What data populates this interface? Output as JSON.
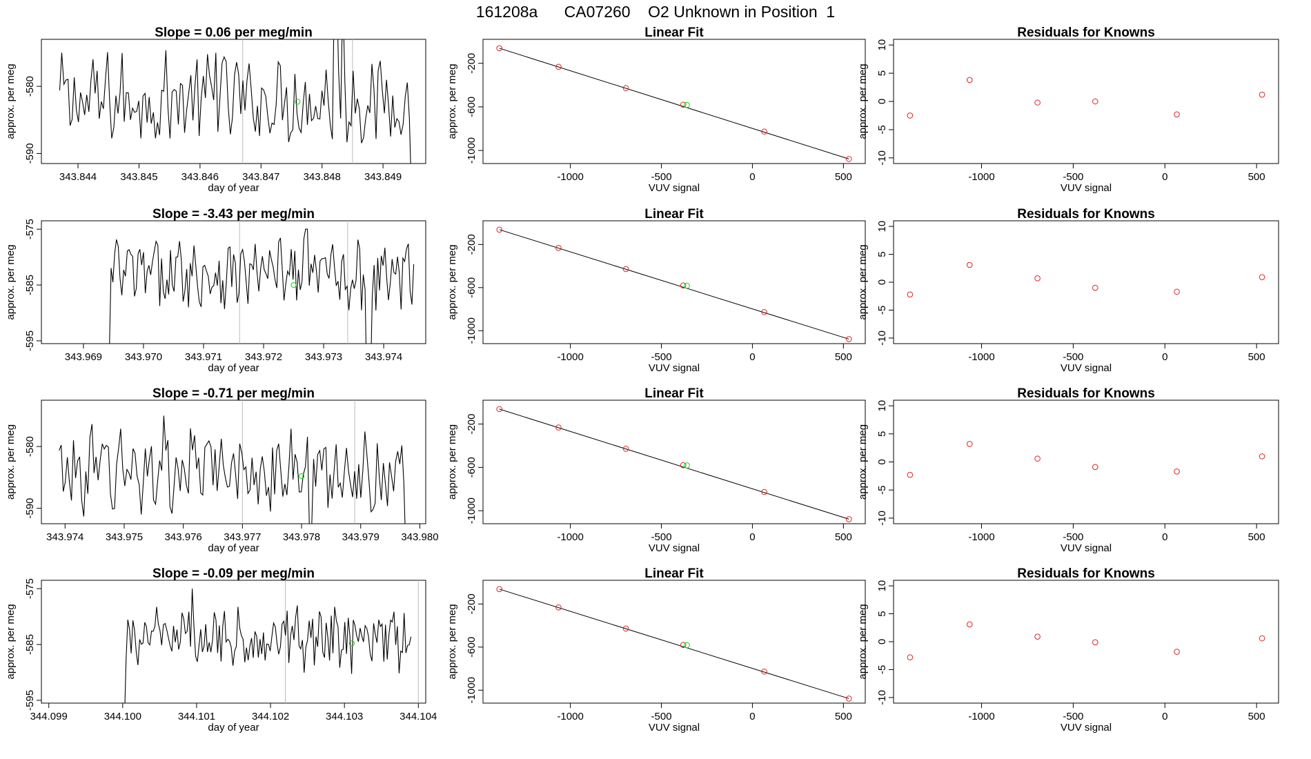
{
  "figure": {
    "title": "161208a      CA07260    O2 Unknown in Position  1"
  },
  "colors": {
    "trace": "#000000",
    "unknown": "#00dd00",
    "known": "#dd2222",
    "marker_line": "#bbbbbb",
    "axis": "#000000"
  },
  "labels": {
    "xlabel_time": "day of year",
    "ylabel": "approx. per meg",
    "xlabel_fit": "VUV signal",
    "fit_title": "Linear Fit",
    "residual_title": "Residuals for Knowns"
  },
  "chart_data": [
    {
      "type": "line",
      "panel": "timeseries",
      "row": 1,
      "title": "Slope =  0.06  per meg/min",
      "xlabel": "day of year",
      "ylabel": "approx. per meg",
      "xlim": [
        343.8434,
        343.8497
      ],
      "ylim": [
        -591.5,
        -573.0
      ],
      "xticks": [
        343.844,
        343.845,
        343.846,
        343.847,
        343.848,
        343.849
      ],
      "xtick_labels": [
        "343.844",
        "343.845",
        "343.846",
        "343.847",
        "343.848",
        "343.849"
      ],
      "yticks": [
        -580,
        -590
      ],
      "ytick_labels": [
        "-580",
        "-590"
      ],
      "x_start": 343.8437,
      "x_end": 343.8495,
      "base": -582,
      "amp": 4.5,
      "spikes": [
        [
          0.44,
          7.0
        ],
        [
          0.78,
          18
        ],
        [
          0.8,
          16
        ],
        [
          0.998,
          -14
        ]
      ],
      "vlines": [
        343.8467,
        343.8485
      ],
      "unknown_point": [
        343.8476,
        -582.3
      ]
    },
    {
      "type": "scatter",
      "panel": "fit",
      "row": 1,
      "title": "Linear Fit",
      "xlabel": "VUV signal",
      "ylabel": "approx. per meg",
      "xlim": [
        -1480,
        620
      ],
      "ylim": [
        -1120,
        20
      ],
      "xticks": [
        -1000,
        -500,
        0,
        500
      ],
      "xtick_labels": [
        "-1000",
        "-500",
        "0",
        "500"
      ],
      "yticks": [
        -200,
        -600,
        -1000
      ],
      "ytick_labels": [
        "-200",
        "-600",
        "-1000"
      ],
      "known_x": [
        -1390,
        -1065,
        -695,
        -380,
        65,
        530
      ],
      "known_y": [
        -62,
        -232,
        -428,
        -580,
        -827,
        -1078
      ],
      "unknown_point": [
        -360,
        -582
      ],
      "fit_line": [
        [
          -1390,
          -62
        ],
        [
          530,
          -1078
        ]
      ]
    },
    {
      "type": "scatter",
      "panel": "residuals",
      "row": 1,
      "title": "Residuals for Knowns",
      "xlabel": "VUV signal",
      "ylabel": "approx. per meg",
      "xlim": [
        -1480,
        620
      ],
      "ylim": [
        -11,
        11
      ],
      "xticks": [
        -1000,
        -500,
        0,
        500
      ],
      "xtick_labels": [
        "-1000",
        "-500",
        "0",
        "500"
      ],
      "yticks": [
        10,
        5,
        0,
        -5,
        -10
      ],
      "ytick_labels": [
        "10",
        "5",
        "0",
        "-5",
        "-10"
      ],
      "x": [
        -1390,
        -1065,
        -695,
        -380,
        65,
        530
      ],
      "y": [
        -2.5,
        3.8,
        -0.2,
        0.0,
        -2.3,
        1.2
      ]
    },
    {
      "type": "line",
      "panel": "timeseries",
      "row": 2,
      "title": "Slope =  -3.43  per meg/min",
      "xlabel": "day of year",
      "ylabel": "approx. per meg",
      "xlim": [
        343.9683,
        343.9747
      ],
      "ylim": [
        -595.5,
        -573.5
      ],
      "xticks": [
        343.969,
        343.97,
        343.971,
        343.972,
        343.973,
        343.974
      ],
      "xtick_labels": [
        "343.969",
        "343.970",
        "343.971",
        "343.972",
        "343.973",
        "343.974"
      ],
      "yticks": [
        -575,
        -585,
        -595
      ],
      "ytick_labels": [
        "-575",
        "-585",
        "-595"
      ],
      "x_start": 343.9694,
      "x_end": 343.9745,
      "base": -583,
      "amp": 4.2,
      "spikes": [
        [
          0.003,
          -15
        ],
        [
          0.65,
          8
        ],
        [
          0.85,
          -22
        ],
        [
          0.86,
          -20
        ]
      ],
      "vlines": [
        343.9716,
        343.9734
      ],
      "unknown_point": [
        343.9725,
        -585.0
      ]
    },
    {
      "type": "scatter",
      "panel": "fit",
      "row": 2,
      "title": "Linear Fit",
      "xlabel": "VUV signal",
      "ylabel": "approx. per meg",
      "xlim": [
        -1480,
        620
      ],
      "ylim": [
        -1120,
        20
      ],
      "xticks": [
        -1000,
        -500,
        0,
        500
      ],
      "xtick_labels": [
        "-1000",
        "-500",
        "0",
        "500"
      ],
      "yticks": [
        -200,
        -600,
        -1000
      ],
      "ytick_labels": [
        "-200",
        "-600",
        "-1000"
      ],
      "known_x": [
        -1390,
        -1065,
        -695,
        -380,
        65,
        530
      ],
      "known_y": [
        -62,
        -232,
        -428,
        -580,
        -827,
        -1078
      ],
      "unknown_point": [
        -360,
        -582
      ],
      "fit_line": [
        [
          -1390,
          -62
        ],
        [
          530,
          -1078
        ]
      ]
    },
    {
      "type": "scatter",
      "panel": "residuals",
      "row": 2,
      "title": "Residuals for Knowns",
      "xlabel": "VUV signal",
      "ylabel": "approx. per meg",
      "xlim": [
        -1480,
        620
      ],
      "ylim": [
        -11,
        11
      ],
      "xticks": [
        -1000,
        -500,
        0,
        500
      ],
      "xtick_labels": [
        "-1000",
        "-500",
        "0",
        "500"
      ],
      "yticks": [
        10,
        5,
        0,
        -5,
        -10
      ],
      "ytick_labels": [
        "10",
        "5",
        "0",
        "-5",
        "-10"
      ],
      "x": [
        -1390,
        -1065,
        -695,
        -380,
        65,
        530
      ],
      "y": [
        -2.2,
        3.1,
        0.7,
        -1.0,
        -1.7,
        0.9
      ]
    },
    {
      "type": "line",
      "panel": "timeseries",
      "row": 3,
      "title": "Slope =  -0.71  per meg/min",
      "xlabel": "day of year",
      "ylabel": "approx. per meg",
      "xlim": [
        343.9736,
        343.9801
      ],
      "ylim": [
        -592.5,
        -572.5
      ],
      "xticks": [
        343.974,
        343.975,
        343.976,
        343.977,
        343.978,
        343.979,
        343.98
      ],
      "xtick_labels": [
        "343.974",
        "343.975",
        "343.976",
        "343.977",
        "343.978",
        "343.979",
        "343.980"
      ],
      "yticks": [
        -580,
        -590
      ],
      "ytick_labels": [
        "-580",
        "-590"
      ],
      "x_start": 343.9739,
      "x_end": 343.9798,
      "base": -584,
      "amp": 4.5,
      "spikes": [
        [
          0.3,
          9
        ],
        [
          0.72,
          -10
        ],
        [
          0.998,
          -14
        ]
      ],
      "vlines": [
        343.977,
        343.9789
      ],
      "unknown_point": [
        343.978,
        -584.8
      ]
    },
    {
      "type": "scatter",
      "panel": "fit",
      "row": 3,
      "title": "Linear Fit",
      "xlabel": "VUV signal",
      "ylabel": "approx. per meg",
      "xlim": [
        -1480,
        620
      ],
      "ylim": [
        -1120,
        20
      ],
      "xticks": [
        -1000,
        -500,
        0,
        500
      ],
      "xtick_labels": [
        "-1000",
        "-500",
        "0",
        "500"
      ],
      "yticks": [
        -200,
        -600,
        -1000
      ],
      "ytick_labels": [
        "-200",
        "-600",
        "-1000"
      ],
      "known_x": [
        -1390,
        -1065,
        -695,
        -380,
        65,
        530
      ],
      "known_y": [
        -62,
        -232,
        -428,
        -580,
        -827,
        -1078
      ],
      "unknown_point": [
        -360,
        -582
      ],
      "fit_line": [
        [
          -1390,
          -62
        ],
        [
          530,
          -1078
        ]
      ]
    },
    {
      "type": "scatter",
      "panel": "residuals",
      "row": 3,
      "title": "Residuals for Knowns",
      "xlabel": "VUV signal",
      "ylabel": "approx. per meg",
      "xlim": [
        -1480,
        620
      ],
      "ylim": [
        -11,
        11
      ],
      "xticks": [
        -1000,
        -500,
        0,
        500
      ],
      "xtick_labels": [
        "-1000",
        "-500",
        "0",
        "500"
      ],
      "yticks": [
        10,
        5,
        0,
        -5,
        -10
      ],
      "ytick_labels": [
        "10",
        "5",
        "0",
        "-5",
        "-10"
      ],
      "x": [
        -1390,
        -1065,
        -695,
        -380,
        65,
        530
      ],
      "y": [
        -2.3,
        3.2,
        0.6,
        -0.9,
        -1.7,
        1.0
      ]
    },
    {
      "type": "line",
      "panel": "timeseries",
      "row": 4,
      "title": "Slope =  -0.09  per meg/min",
      "xlabel": "day of year",
      "ylabel": "approx. per meg",
      "xlim": [
        344.0989,
        344.1041
      ],
      "ylim": [
        -595.5,
        -573.5
      ],
      "xticks": [
        344.099,
        344.1,
        344.101,
        344.102,
        344.103,
        344.104
      ],
      "xtick_labels": [
        "344.099",
        "344.100",
        "344.101",
        "344.102",
        "344.103",
        "344.104"
      ],
      "yticks": [
        -575,
        -585,
        -595
      ],
      "ytick_labels": [
        "-575",
        "-585",
        "-595"
      ],
      "x_start": 344.1,
      "x_end": 344.1039,
      "base": -584,
      "amp": 3.8,
      "spikes": [
        [
          0.003,
          -15
        ],
        [
          0.24,
          9
        ]
      ],
      "vlines": [
        344.1022,
        344.104
      ],
      "unknown_point": [
        344.1031,
        -584.8
      ]
    },
    {
      "type": "scatter",
      "panel": "fit",
      "row": 4,
      "title": "Linear Fit",
      "xlabel": "VUV signal",
      "ylabel": "approx. per meg",
      "xlim": [
        -1480,
        620
      ],
      "ylim": [
        -1120,
        20
      ],
      "xticks": [
        -1000,
        -500,
        0,
        500
      ],
      "xtick_labels": [
        "-1000",
        "-500",
        "0",
        "500"
      ],
      "yticks": [
        -200,
        -600,
        -1000
      ],
      "ytick_labels": [
        "-200",
        "-600",
        "-1000"
      ],
      "known_x": [
        -1390,
        -1065,
        -695,
        -380,
        65,
        530
      ],
      "known_y": [
        -62,
        -232,
        -428,
        -580,
        -827,
        -1078
      ],
      "unknown_point": [
        -360,
        -582
      ],
      "fit_line": [
        [
          -1390,
          -62
        ],
        [
          530,
          -1078
        ]
      ]
    },
    {
      "type": "scatter",
      "panel": "residuals",
      "row": 4,
      "title": "Residuals for Knowns",
      "xlabel": "VUV signal",
      "ylabel": "approx. per meg",
      "xlim": [
        -1480,
        620
      ],
      "ylim": [
        -11,
        11
      ],
      "xticks": [
        -1000,
        -500,
        0,
        500
      ],
      "xtick_labels": [
        "-1000",
        "-500",
        "0",
        "500"
      ],
      "yticks": [
        10,
        5,
        0,
        -5,
        -10
      ],
      "ytick_labels": [
        "10",
        "5",
        "0",
        "-5",
        "-10"
      ],
      "x": [
        -1390,
        -1065,
        -695,
        -380,
        65,
        530
      ],
      "y": [
        -2.8,
        3.1,
        0.9,
        -0.1,
        -1.8,
        0.6
      ]
    }
  ]
}
